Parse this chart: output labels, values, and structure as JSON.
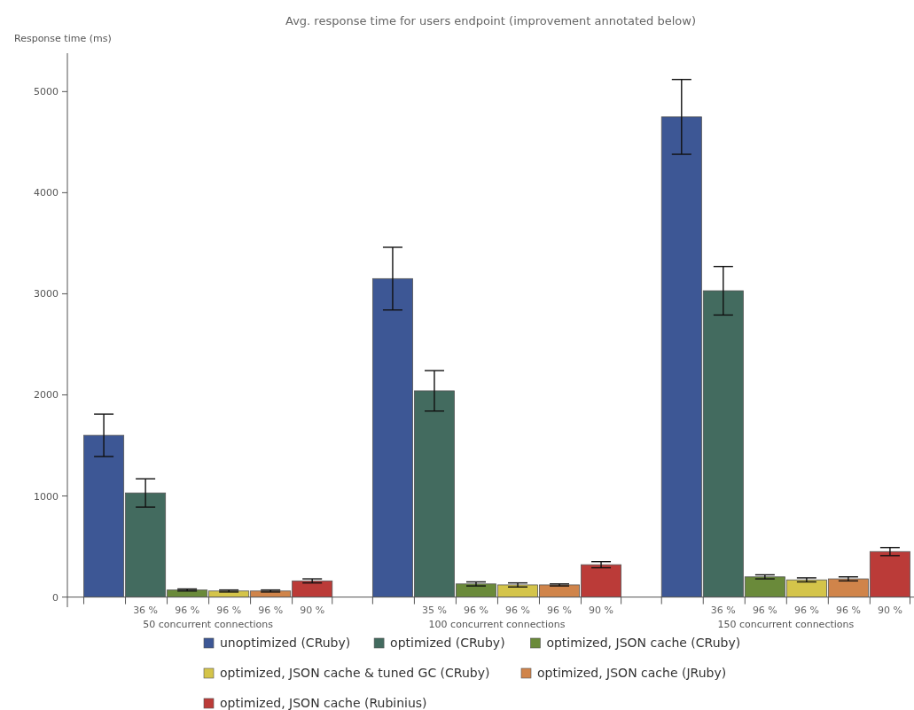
{
  "chart_data": {
    "type": "bar",
    "title": "Avg. response time for users endpoint (improvement annotated below)",
    "ylabel": "Response time (ms)",
    "categories": [
      "50 concurrent connections",
      "100 concurrent connections",
      "150 concurrent connections"
    ],
    "series": [
      {
        "name": "unoptimized (CRuby)",
        "color": "#3d5795",
        "values": [
          1600,
          3150,
          4750
        ],
        "errors": [
          210,
          310,
          370
        ]
      },
      {
        "name": "optimized (CRuby)",
        "color": "#436b5f",
        "values": [
          1030,
          2040,
          3030
        ],
        "errors": [
          140,
          200,
          240
        ]
      },
      {
        "name": "optimized, JSON cache (CRuby)",
        "color": "#6a8a3a",
        "values": [
          70,
          130,
          200
        ],
        "errors": [
          10,
          20,
          20
        ]
      },
      {
        "name": "optimized, JSON cache & tuned GC (CRuby)",
        "color": "#d4c44a",
        "values": [
          60,
          120,
          170
        ],
        "errors": [
          10,
          20,
          20
        ]
      },
      {
        "name": "optimized, JSON cache (JRuby)",
        "color": "#d0844a",
        "values": [
          60,
          120,
          180
        ],
        "errors": [
          10,
          10,
          20
        ]
      },
      {
        "name": "optimized, JSON cache (Rubinius)",
        "color": "#bb3b38",
        "values": [
          160,
          320,
          450
        ],
        "errors": [
          20,
          30,
          40
        ]
      }
    ],
    "ylim": [
      -100,
      5380
    ],
    "yticks": [
      0,
      1000,
      2000,
      3000,
      4000,
      5000
    ],
    "grid": false,
    "legend": "bottom",
    "annotations": [
      "36 %",
      "96 %",
      "96 %",
      "96 %",
      "90 %",
      "35 %",
      "96 %",
      "96 %",
      "96 %",
      "90 %",
      "36 %",
      "96 %",
      "96 %",
      "96 %",
      "90 %"
    ]
  }
}
